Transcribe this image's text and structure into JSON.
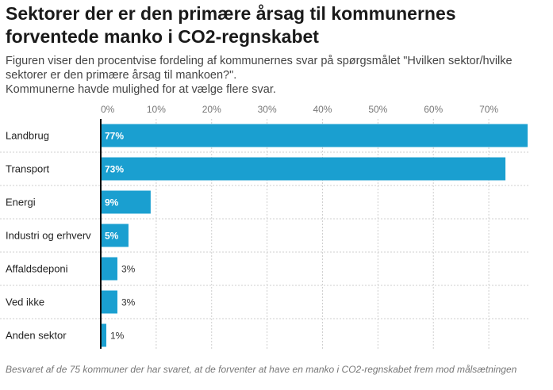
{
  "title": "Sektorer der er den primære årsag til kommunernes forventede manko i CO2-regnskabet",
  "subtitle_lines": [
    "Figuren viser den procentvise fordeling af kommunernes svar på spørgsmålet \"Hvilken sektor/hvilke sektorer er den primære årsag til mankoen?\".",
    "Kommunerne havde mulighed for at vælge flere svar."
  ],
  "footnote": "Besvaret af de 75 kommuner der har svaret, at de forventer at have en manko i CO2-regnskabet frem mod målsætningen",
  "colors": {
    "bar": "#1a9fd0",
    "label_inside": "#ffffff",
    "label_outside": "#333333",
    "axis": "#111111",
    "grid": "#cfcfcf"
  },
  "chart_data": {
    "type": "bar",
    "orientation": "horizontal",
    "categories": [
      "Landbrug",
      "Transport",
      "Energi",
      "Industri og erhverv",
      "Affaldsdeponi",
      "Ved ikke",
      "Anden sektor"
    ],
    "values": [
      77,
      73,
      9,
      5,
      3,
      3,
      1
    ],
    "value_labels": [
      "77%",
      "73%",
      "9%",
      "5%",
      "3%",
      "3%",
      "1%"
    ],
    "xticks": [
      0,
      10,
      20,
      30,
      40,
      50,
      60,
      70
    ],
    "xtick_labels": [
      "0%",
      "10%",
      "20%",
      "30%",
      "40%",
      "50%",
      "60%",
      "70%"
    ],
    "xlim": [
      0,
      77
    ],
    "grid": true
  }
}
